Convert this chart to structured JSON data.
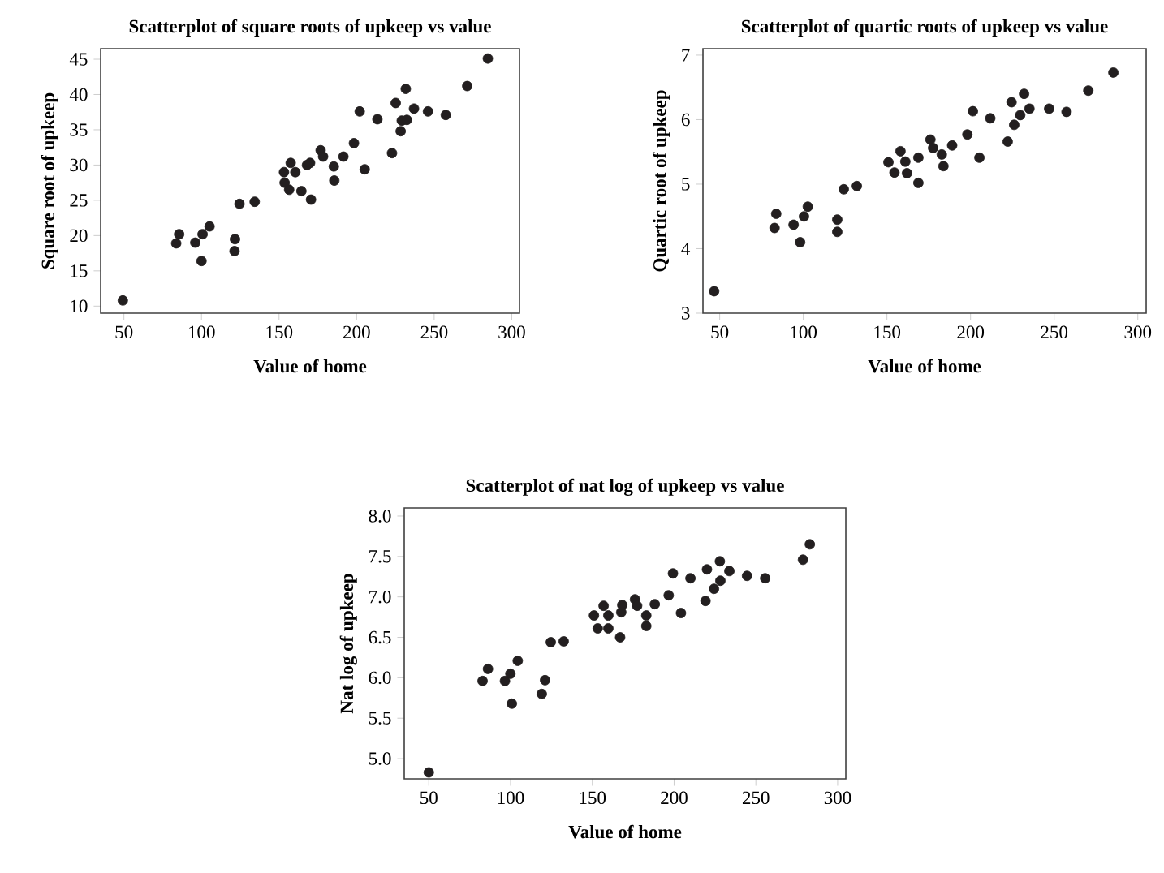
{
  "chart_data": [
    {
      "type": "scatter",
      "title": "Scatterplot of square roots of upkeep vs value",
      "xlabel": "Value of home",
      "ylabel": "Square root of upkeep",
      "color": "#231f20",
      "xlim": [
        35,
        305
      ],
      "ylim": [
        9,
        46.5
      ],
      "xticks": [
        50,
        100,
        150,
        200,
        250,
        300
      ],
      "yticks": [
        10,
        15,
        20,
        25,
        30,
        35,
        40,
        45
      ],
      "x": [
        49.3,
        83.7,
        85.6,
        96,
        100,
        100.7,
        105.2,
        121.6,
        121.3,
        124.5,
        134.3,
        153.2,
        157.5,
        160.5,
        153.6,
        156.5,
        164.4,
        170.6,
        168,
        170,
        176.8,
        178.4,
        185.3,
        185.6,
        191.5,
        198.3,
        202,
        205.2,
        213.4,
        222.8,
        225.2,
        228.4,
        229.1,
        231.7,
        232.4,
        237,
        246,
        257.5,
        271.3,
        284.6
      ],
      "values": [
        10.8,
        18.9,
        20.2,
        19.0,
        16.4,
        20.2,
        21.3,
        19.5,
        17.8,
        24.5,
        24.8,
        29.0,
        30.3,
        29.0,
        27.5,
        26.5,
        26.3,
        25.1,
        30.0,
        30.3,
        32.1,
        31.2,
        29.8,
        27.8,
        31.2,
        33.1,
        37.6,
        29.4,
        36.5,
        31.7,
        38.8,
        34.8,
        36.3,
        40.8,
        36.4,
        38.0,
        37.6,
        37.1,
        41.2,
        45.1
      ]
    },
    {
      "type": "scatter",
      "title": "Scatterplot of quartic roots of upkeep vs value",
      "xlabel": "Value of home",
      "ylabel": "Quartic root of upkeep",
      "color": "#231f20",
      "xlim": [
        40,
        305
      ],
      "ylim": [
        3,
        7.1
      ],
      "xticks": [
        50,
        100,
        150,
        200,
        250,
        300
      ],
      "yticks": [
        3,
        4,
        5,
        6,
        7
      ],
      "x": [
        46.7,
        82.8,
        83.8,
        94.2,
        98.1,
        100.4,
        102.7,
        120.3,
        120.3,
        124.2,
        132,
        150.9,
        154.5,
        158.1,
        161,
        162,
        168.8,
        168.8,
        176,
        177.6,
        182.8,
        183.8,
        189,
        198.1,
        201.4,
        205.3,
        211.8,
        222.2,
        224.5,
        226.1,
        229.7,
        232,
        235.2,
        247,
        257.4,
        270.4,
        285.4
      ],
      "values": [
        3.34,
        4.32,
        4.54,
        4.37,
        4.1,
        4.5,
        4.65,
        4.45,
        4.26,
        4.92,
        4.97,
        5.34,
        5.18,
        5.51,
        5.35,
        5.17,
        5.41,
        5.02,
        5.69,
        5.56,
        5.46,
        5.28,
        5.6,
        5.77,
        6.13,
        5.41,
        6.02,
        5.66,
        6.27,
        5.92,
        6.07,
        6.4,
        6.17,
        6.17,
        6.12,
        6.45,
        6.73
      ]
    },
    {
      "type": "scatter",
      "title": "Scatterplot of nat log of upkeep vs value",
      "xlabel": "Value of home",
      "ylabel": "Nat log of upkeep",
      "color": "#231f20",
      "xlim": [
        35,
        305
      ],
      "ylim": [
        4.75,
        8.1
      ],
      "xticks": [
        50,
        100,
        150,
        200,
        250,
        300
      ],
      "yticks": [
        {
          "value": 5,
          "label": "5.0"
        },
        {
          "value": 5.5,
          "label": "5.5"
        },
        {
          "value": 6,
          "label": "6.0"
        },
        {
          "value": 6.5,
          "label": "6.5"
        },
        {
          "value": 7,
          "label": "7.0"
        },
        {
          "value": 7.5,
          "label": "7.5"
        },
        {
          "value": 8,
          "label": "8.0"
        }
      ],
      "x": [
        50,
        82.9,
        86.2,
        96.6,
        99.9,
        100.8,
        104.4,
        119.1,
        121.1,
        124.6,
        132.5,
        151,
        153.3,
        156.9,
        159.8,
        159.8,
        167,
        167.7,
        168.3,
        176.1,
        177.4,
        183,
        183,
        188.2,
        196.7,
        199.3,
        204.2,
        210,
        219.2,
        220.1,
        224.4,
        228,
        228.3,
        233.8,
        244.6,
        255.7,
        278.8,
        283
      ],
      "values": [
        4.83,
        5.96,
        6.11,
        5.96,
        6.05,
        5.68,
        6.21,
        5.8,
        5.97,
        6.44,
        6.45,
        6.77,
        6.61,
        6.89,
        6.77,
        6.61,
        6.5,
        6.81,
        6.9,
        6.97,
        6.89,
        6.77,
        6.64,
        6.91,
        7.02,
        7.29,
        6.8,
        7.23,
        6.95,
        7.34,
        7.1,
        7.44,
        7.2,
        7.32,
        7.26,
        7.23,
        7.46,
        7.65
      ]
    }
  ]
}
